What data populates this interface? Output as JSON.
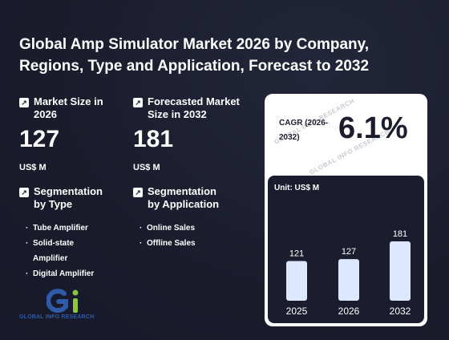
{
  "title": "Global Amp Simulator Market 2026 by Company, Regions, Type and Application, Forecast to 2032",
  "market_size": {
    "label": "Market Size in 2026",
    "value": "127",
    "unit": "US$ M"
  },
  "forecast_size": {
    "label": "Forecasted Market Size in 2032",
    "value": "181",
    "unit": "US$ M"
  },
  "segment_type": {
    "label": "Segmentation by Type",
    "items": [
      "Tube Amplifier",
      "Solid-state Amplifier",
      "Digital Amplifier"
    ]
  },
  "segment_app": {
    "label": "Segmentation by Application",
    "items": [
      "Online Sales",
      "Offline Sales"
    ]
  },
  "cagr": {
    "label": "CAGR (2026-2032)",
    "value": "6.1%"
  },
  "logo_text": "GLOBAL INFO RESEARCH",
  "watermark": "GLOBAL INFO RESEARCH",
  "colors": {
    "background": "#1b1d2e",
    "bar": "#dbe8ff",
    "logo_blue": "#2e5aa8",
    "logo_green": "#8cc63f"
  },
  "chart_data": {
    "type": "bar",
    "unit_label": "Unit: US$ M",
    "categories": [
      "2025",
      "2026",
      "2032"
    ],
    "values": [
      121,
      127,
      181
    ]
  }
}
